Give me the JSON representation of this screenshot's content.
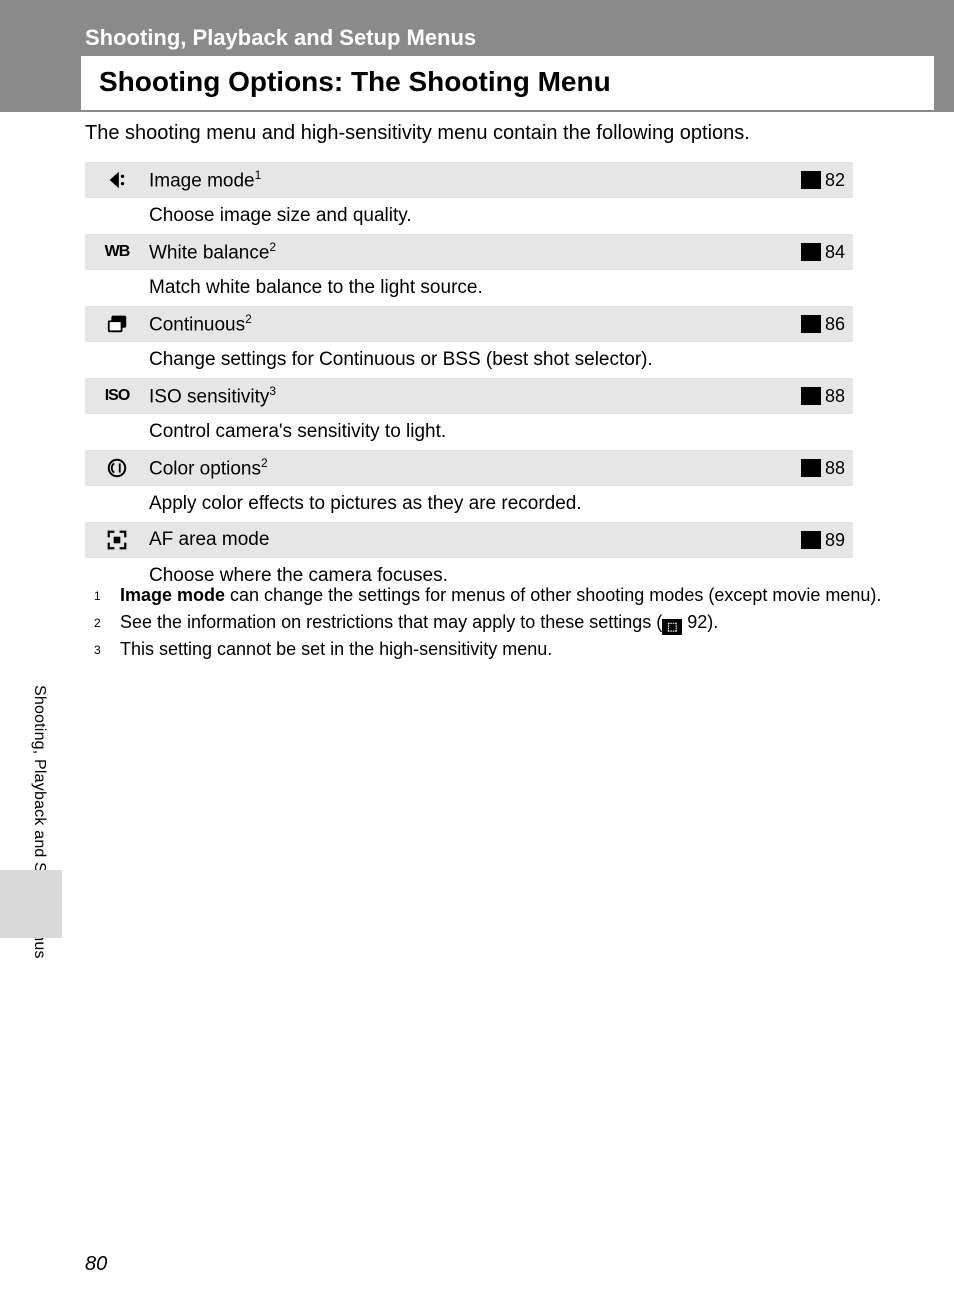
{
  "page": {
    "number": "80",
    "section_sub": "Shooting, Playback and Setup Menus",
    "section_title": "Shooting Options: The Shooting Menu",
    "intro": "The shooting menu and high-sensitivity menu contain the following options.",
    "side_label": "Shooting, Playback and Setup Menus"
  },
  "colors": {
    "header_band": "#8a8a8a",
    "row_head_bg": "#e6e6e6",
    "side_tab_bg": "#d9d9d9",
    "text": "#000000",
    "page_bg": "#ffffff"
  },
  "options": [
    {
      "icon_name": "image-mode-icon",
      "icon_text": "",
      "title": "Image mode",
      "sup": "1",
      "ref": "82",
      "desc": "Choose image size and quality."
    },
    {
      "icon_name": "white-balance-icon",
      "icon_text": "WB",
      "title": "White balance",
      "sup": "2",
      "ref": "84",
      "desc": "Match white balance to the light source."
    },
    {
      "icon_name": "continuous-icon",
      "icon_text": "",
      "title": "Continuous",
      "sup": "2",
      "ref": "86",
      "desc": "Change settings for Continuous or BSS (best shot selector)."
    },
    {
      "icon_name": "iso-icon",
      "icon_text": "ISO",
      "title": "ISO sensitivity",
      "sup": "3",
      "ref": "88",
      "desc": "Control camera's sensitivity to light."
    },
    {
      "icon_name": "color-options-icon",
      "icon_text": "",
      "title": "Color options",
      "sup": "2",
      "ref": "88",
      "desc": "Apply color effects to pictures as they are recorded."
    },
    {
      "icon_name": "af-area-icon",
      "icon_text": "",
      "title": "AF area mode",
      "sup": "",
      "ref": "89",
      "desc": "Choose where the camera focuses."
    }
  ],
  "footnotes": [
    {
      "num": "1",
      "html": "<b>Image mode</b> can change the settings for menus of other shooting modes (except movie menu)."
    },
    {
      "num": "2",
      "html": "See the information on restrictions that may apply to these settings (<span class='inline-ref'>⬚</span> 92)."
    },
    {
      "num": "3",
      "html": "This setting cannot be set in the high-sensitivity menu."
    }
  ],
  "ref_glyph_label": "⬚"
}
